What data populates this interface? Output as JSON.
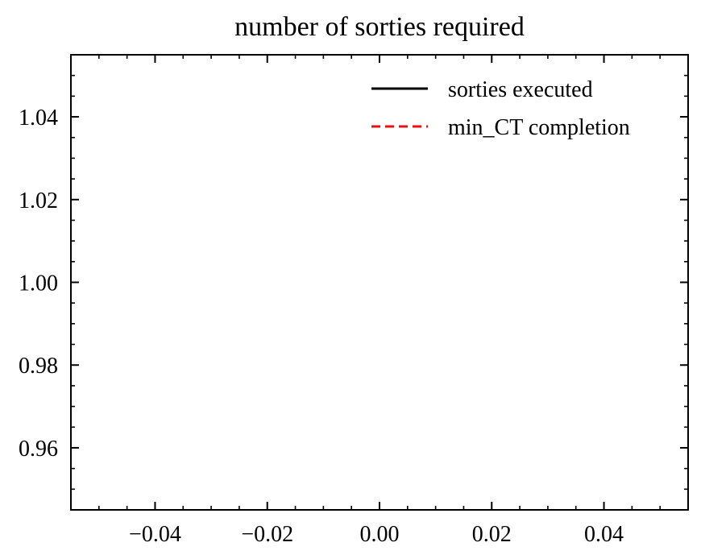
{
  "chart_data": {
    "type": "line",
    "title": "number of sorties required",
    "xlabel": "",
    "ylabel": "",
    "xlim": [
      -0.055,
      0.055
    ],
    "ylim": [
      0.945,
      1.055
    ],
    "x_ticks": [
      -0.04,
      -0.02,
      0.0,
      0.02,
      0.04
    ],
    "x_tick_labels": [
      "−0.04",
      "−0.02",
      "0.00",
      "0.02",
      "0.04"
    ],
    "x_minor_ticks": [
      -0.05,
      -0.045,
      -0.035,
      -0.03,
      -0.025,
      -0.015,
      -0.01,
      -0.005,
      0.005,
      0.01,
      0.015,
      0.025,
      0.03,
      0.035,
      0.045,
      0.05
    ],
    "y_ticks": [
      0.96,
      0.98,
      1.0,
      1.02,
      1.04
    ],
    "y_tick_labels": [
      "0.96",
      "0.98",
      "1.00",
      "1.02",
      "1.04"
    ],
    "y_minor_ticks": [
      0.95,
      0.955,
      0.965,
      0.97,
      0.975,
      0.985,
      0.99,
      0.995,
      1.005,
      1.01,
      1.015,
      1.025,
      1.03,
      1.035,
      1.045,
      1.05
    ],
    "grid": false,
    "legend_position": "top-right",
    "series": [
      {
        "name": "sorties executed",
        "color": "#000000",
        "dash": "solid",
        "x": [],
        "y": []
      },
      {
        "name": "min_CT completion",
        "color": "#e8110f",
        "dash": "dashed",
        "x": [],
        "y": []
      }
    ]
  }
}
